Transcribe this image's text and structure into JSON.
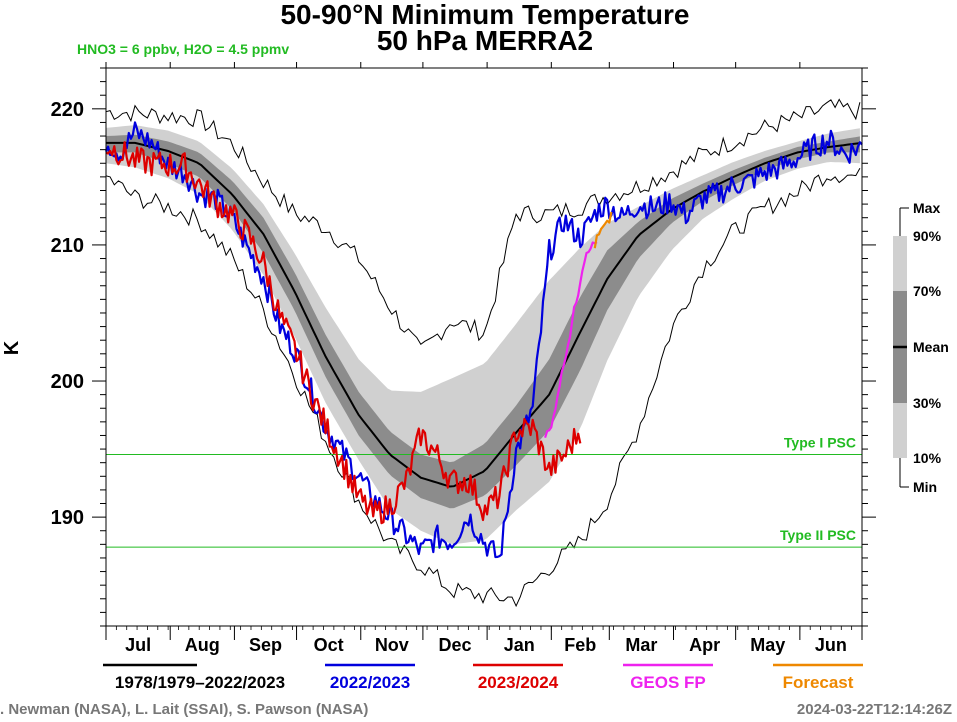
{
  "title_line1": "50-90°N Minimum Temperature",
  "title_line2": "50 hPa   MERRA2",
  "condition_label": "HNO3 = 6 ppbv, H2O = 4.5 ppmv",
  "colors": {
    "climatology": "#000000",
    "season_2022_2023": "#0000dd",
    "season_2023_2024": "#dd0000",
    "geos_fp": "#ee22ee",
    "forecast": "#ee8800",
    "psc": "#22bb22",
    "band_10_90": "#d0d0d0",
    "band_30_70": "#8c8c8c"
  },
  "chart_data": {
    "type": "line",
    "ylabel": "K",
    "ylim": [
      182,
      223
    ],
    "yticks": [
      190,
      200,
      210,
      220
    ],
    "months": [
      "Jul",
      "Aug",
      "Sep",
      "Oct",
      "Nov",
      "Dec",
      "Jan",
      "Feb",
      "Mar",
      "Apr",
      "May",
      "Jun"
    ],
    "x_unit": "day of season (1 = Jul 1)",
    "x_domain": [
      1,
      366
    ],
    "grid": false,
    "thresholds": [
      {
        "name": "Type I PSC",
        "value": 194.6
      },
      {
        "name": "Type II PSC",
        "value": 187.8
      }
    ],
    "climatology": {
      "x": [
        1,
        15,
        31,
        46,
        62,
        77,
        92,
        107,
        123,
        138,
        153,
        168,
        184,
        199,
        215,
        230,
        243,
        258,
        274,
        289,
        304,
        319,
        335,
        350,
        366
      ],
      "mean": [
        217.5,
        217.5,
        216.9,
        216.0,
        213.7,
        210.8,
        206.6,
        201.8,
        197.5,
        194.6,
        192.9,
        192.2,
        193.4,
        196.2,
        199.0,
        203.6,
        207.5,
        210.7,
        212.6,
        213.9,
        215.0,
        216.0,
        216.8,
        217.2,
        217.5
      ],
      "p30": [
        216.8,
        216.8,
        216.0,
        215.0,
        212.6,
        209.4,
        205.2,
        200.3,
        196.0,
        193.1,
        191.4,
        190.6,
        191.6,
        193.8,
        196.4,
        200.8,
        205.2,
        209.0,
        211.6,
        213.2,
        214.4,
        215.5,
        216.3,
        216.8,
        216.8
      ],
      "p70": [
        218.0,
        218.1,
        217.6,
        216.8,
        214.7,
        212.0,
        208.0,
        203.4,
        199.2,
        196.3,
        194.6,
        194.0,
        195.4,
        198.2,
        201.6,
        206.2,
        209.6,
        211.7,
        213.4,
        214.5,
        215.5,
        216.4,
        217.2,
        217.6,
        218.0
      ],
      "p10": [
        216.0,
        215.7,
        214.9,
        213.7,
        211.1,
        207.8,
        203.3,
        198.4,
        194.2,
        190.6,
        189.0,
        188.0,
        188.3,
        190.5,
        192.6,
        196.5,
        201.5,
        206.2,
        209.6,
        211.9,
        213.4,
        214.7,
        215.6,
        216.1,
        216.0
      ],
      "p90": [
        218.6,
        218.8,
        218.4,
        217.6,
        215.6,
        213.0,
        209.4,
        205.4,
        201.6,
        199.3,
        199.2,
        200.2,
        201.3,
        204.2,
        207.4,
        209.8,
        211.6,
        212.8,
        214.1,
        215.1,
        216.1,
        216.9,
        217.6,
        218.2,
        218.6
      ],
      "min": [
        215.0,
        213.5,
        212.8,
        211.8,
        209.0,
        205.2,
        200.5,
        195.7,
        191.2,
        188.0,
        186.5,
        184.6,
        184.2,
        184.0,
        186.3,
        188.2,
        191.2,
        196.5,
        203.8,
        208.3,
        211.0,
        212.7,
        213.9,
        215.3,
        215.0
      ],
      "max": [
        219.8,
        219.7,
        219.5,
        219.3,
        217.4,
        214.7,
        212.3,
        211.3,
        209.0,
        205.5,
        202.1,
        204.5,
        203.5,
        212.3,
        212.3,
        212.8,
        213.6,
        214.3,
        215.4,
        216.7,
        217.6,
        218.6,
        219.3,
        220.1,
        219.8
      ]
    },
    "series": [
      {
        "name": "1978/1979–2022/2023",
        "role": "mean"
      },
      {
        "name": "2022/2023",
        "x": [
          1,
          8,
          15,
          23,
          31,
          39,
          46,
          54,
          62,
          70,
          77,
          85,
          92,
          100,
          107,
          115,
          123,
          130,
          138,
          146,
          153,
          161,
          168,
          176,
          184,
          191,
          199,
          207,
          215,
          222,
          230,
          238,
          243,
          250,
          258,
          266,
          274,
          281,
          289,
          297,
          304,
          312,
          319,
          327,
          335,
          342,
          350,
          358,
          366
        ],
        "y": [
          217.6,
          216.8,
          218.3,
          217.5,
          215.9,
          215.3,
          213.8,
          213.4,
          211.9,
          209.6,
          207.6,
          204.0,
          202.3,
          199.3,
          196.6,
          194.8,
          193.0,
          191.4,
          190.0,
          188.6,
          187.5,
          188.5,
          188.2,
          190.1,
          188.1,
          186.9,
          194.8,
          198.0,
          209.5,
          211.8,
          210.5,
          212.5,
          213.0,
          212.0,
          213.0,
          212.7,
          213.2,
          212.2,
          213.4,
          213.8,
          214.4,
          214.7,
          215.3,
          215.7,
          216.4,
          217.2,
          217.7,
          216.7,
          217.3
        ]
      },
      {
        "name": "2023/2024",
        "x": [
          1,
          8,
          15,
          23,
          31,
          39,
          46,
          54,
          62,
          70,
          77,
          85,
          92,
          100,
          107,
          115,
          123,
          130,
          138,
          146,
          153,
          161,
          168,
          176,
          184,
          191,
          199,
          207,
          215,
          222,
          230
        ],
        "y": [
          217.3,
          216.8,
          216.2,
          216.0,
          215.9,
          215.8,
          214.5,
          213.1,
          212.2,
          210.6,
          208.7,
          204.7,
          202.4,
          199.2,
          196.7,
          194.1,
          191.4,
          190.2,
          190.8,
          192.6,
          196.1,
          194.5,
          192.6,
          192.7,
          190.5,
          191.6,
          196.3,
          196.6,
          193.4,
          194.5,
          196.4
        ]
      },
      {
        "name": "GEOS FP",
        "x": [
          213,
          216,
          219,
          221,
          223,
          225,
          227,
          229,
          231,
          233,
          235,
          236,
          238
        ],
        "y": [
          196.0,
          196.5,
          199.0,
          200.5,
          202.0,
          203.4,
          205.2,
          206.5,
          208.3,
          209.5,
          209.9,
          210.0,
          210.2
        ]
      },
      {
        "name": "Forecast",
        "x": [
          237,
          239,
          241,
          243,
          245
        ],
        "y": [
          210.0,
          210.7,
          211.2,
          211.4,
          212.3
        ]
      }
    ],
    "legend_labels": [
      "1978/1979–2022/2023",
      "2022/2023",
      "2023/2024",
      "GEOS FP",
      "Forecast"
    ],
    "percentile_legend": {
      "labels": [
        "Max",
        "90%",
        "70%",
        "Mean",
        "30%",
        "10%",
        "Min"
      ]
    }
  },
  "credits_left": ". Newman (NASA), L. Lait (SSAI), S. Pawson (NASA)",
  "credits_right": "2024-03-22T12:14:26Z"
}
